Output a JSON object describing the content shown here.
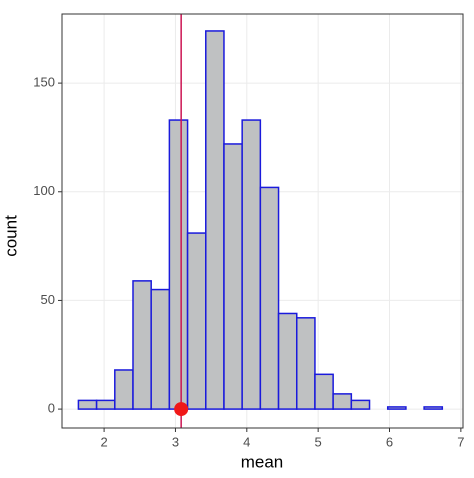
{
  "chart_data": {
    "type": "histogram",
    "x_label": "mean",
    "y_label": "count",
    "bins": [
      1.64,
      1.895,
      2.15,
      2.405,
      2.66,
      2.915,
      3.17,
      3.425,
      3.68,
      3.935,
      4.19,
      4.445,
      4.7,
      4.955,
      5.21,
      5.465,
      5.72,
      5.975,
      6.23,
      6.485,
      6.74
    ],
    "values": [
      4,
      4,
      18,
      59,
      55,
      133,
      81,
      174,
      122,
      133,
      102,
      44,
      42,
      16,
      7,
      4,
      0,
      1,
      0,
      1
    ],
    "color": "#bfc1c2",
    "edge_color": "#1a1adc",
    "reference_line": {
      "x": 3.08,
      "color": "#cc1553"
    },
    "marker": {
      "x": 3.08,
      "y": 0,
      "color": "#f01818"
    },
    "xlim": [
      1.41,
      7.03
    ],
    "ylim": [
      -8.7,
      181.8
    ],
    "xticks": [
      2,
      3,
      4,
      5,
      6,
      7
    ],
    "yticks": [
      0,
      50,
      100,
      150
    ],
    "grid": true
  }
}
